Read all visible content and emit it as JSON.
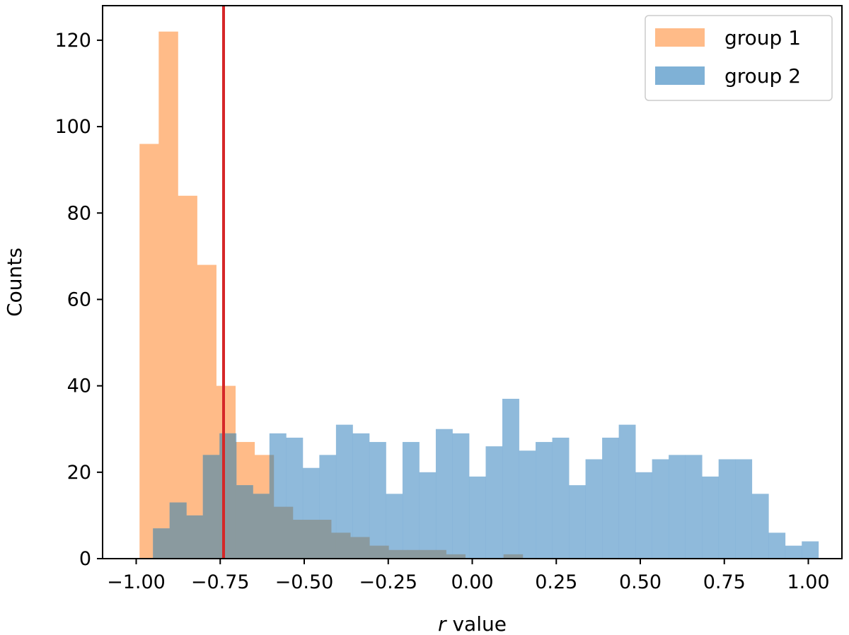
{
  "chart_data": {
    "type": "bar",
    "subtype": "overlapping-histogram",
    "title": "",
    "xlabel_italic": "r",
    "xlabel_rest": " value",
    "ylabel": "Counts",
    "xlim": [
      -1.1,
      1.1
    ],
    "ylim": [
      0,
      128
    ],
    "xticks": [
      -1.0,
      -0.75,
      -0.5,
      -0.25,
      0.0,
      0.25,
      0.5,
      0.75,
      1.0
    ],
    "xtick_labels": [
      "−1.00",
      "−0.75",
      "−0.50",
      "−0.25",
      "0.00",
      "0.25",
      "0.50",
      "0.75",
      "1.00"
    ],
    "yticks": [
      0,
      20,
      40,
      60,
      80,
      100,
      120
    ],
    "ytick_labels": [
      "0",
      "20",
      "40",
      "60",
      "80",
      "100",
      "120"
    ],
    "grid": false,
    "legend_position": "top-right",
    "series": [
      {
        "name": "group 1",
        "color": "#ffbb88",
        "bin_start": -0.99,
        "bin_width": 0.057,
        "values": [
          96,
          122,
          84,
          68,
          40,
          27,
          24,
          12,
          9,
          9,
          6,
          5,
          3,
          2,
          2,
          2,
          1,
          0,
          0,
          1
        ]
      },
      {
        "name": "group 2",
        "color": "#7fb1d6",
        "bin_start": -0.95,
        "bin_width": 0.0495,
        "values": [
          7,
          13,
          10,
          24,
          29,
          17,
          15,
          29,
          28,
          21,
          24,
          31,
          29,
          27,
          15,
          27,
          20,
          30,
          29,
          19,
          26,
          37,
          25,
          27,
          28,
          17,
          23,
          28,
          31,
          20,
          23,
          24,
          24,
          19,
          23,
          23,
          15,
          6,
          3,
          4
        ]
      }
    ],
    "vline": {
      "x": -0.74,
      "color": "#d62728"
    }
  }
}
